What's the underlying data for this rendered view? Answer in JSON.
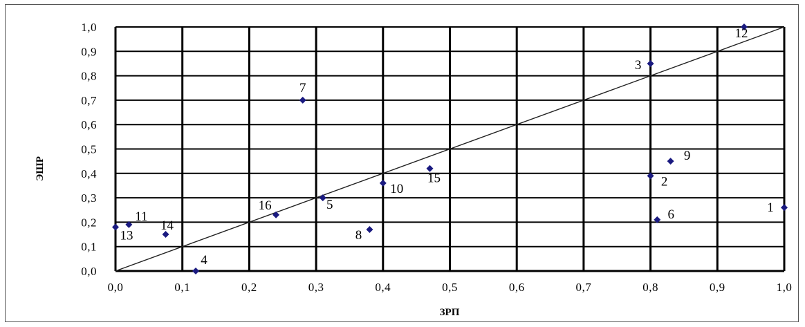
{
  "chart_data": {
    "type": "scatter",
    "xlabel": "ЗРП",
    "ylabel": "ЭШР",
    "xlim": [
      0,
      1
    ],
    "ylim": [
      0,
      1
    ],
    "x_ticks": [
      "0,0",
      "0,1",
      "0,2",
      "0,3",
      "0,4",
      "0,5",
      "0,6",
      "0,7",
      "0,8",
      "0,9",
      "1,0"
    ],
    "y_ticks": [
      "0,0",
      "0,1",
      "0,2",
      "0,3",
      "0,4",
      "0,5",
      "0,6",
      "0,7",
      "0,8",
      "0,9",
      "1,0"
    ],
    "grid": true,
    "reference_line": {
      "from": [
        0,
        0
      ],
      "to": [
        1,
        1
      ]
    },
    "marker_color": "#1a1a80",
    "points": [
      {
        "label": "1",
        "x": 1.0,
        "y": 0.26
      },
      {
        "label": "2",
        "x": 0.8,
        "y": 0.39
      },
      {
        "label": "3",
        "x": 0.8,
        "y": 0.85
      },
      {
        "label": "4",
        "x": 0.12,
        "y": 0.0
      },
      {
        "label": "5",
        "x": 0.31,
        "y": 0.3
      },
      {
        "label": "6",
        "x": 0.81,
        "y": 0.21
      },
      {
        "label": "7",
        "x": 0.28,
        "y": 0.7
      },
      {
        "label": "8",
        "x": 0.38,
        "y": 0.17
      },
      {
        "label": "9",
        "x": 0.83,
        "y": 0.45
      },
      {
        "label": "10",
        "x": 0.4,
        "y": 0.36
      },
      {
        "label": "11",
        "x": 0.02,
        "y": 0.19
      },
      {
        "label": "12",
        "x": 0.94,
        "y": 1.0
      },
      {
        "label": "13",
        "x": 0.0,
        "y": 0.18
      },
      {
        "label": "14",
        "x": 0.075,
        "y": 0.15
      },
      {
        "label": "15",
        "x": 0.47,
        "y": 0.42
      },
      {
        "label": "16",
        "x": 0.24,
        "y": 0.23
      }
    ]
  }
}
